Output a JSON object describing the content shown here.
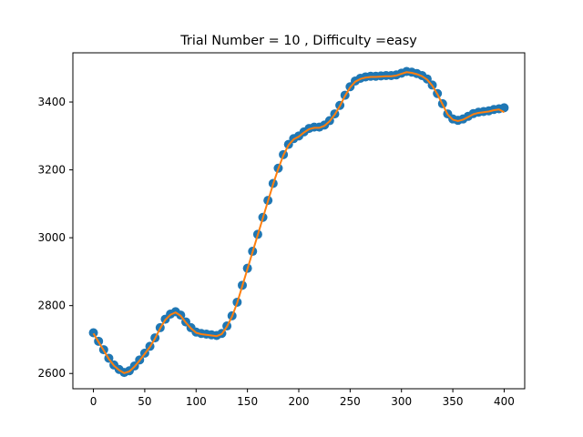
{
  "chart_data": {
    "type": "scatter",
    "title": "Trial Number = 10  , Difficulty =easy",
    "xlabel": "",
    "ylabel": "",
    "xlim": [
      -20,
      420
    ],
    "ylim": [
      2555,
      3545
    ],
    "xticks": [
      0,
      50,
      100,
      150,
      200,
      250,
      300,
      350,
      400
    ],
    "yticks": [
      2600,
      2800,
      3000,
      3200,
      3400
    ],
    "grid": false,
    "legend": "none",
    "series": [
      {
        "style": "markers",
        "color": "#1f77b4",
        "x": [
          0,
          5,
          10,
          15,
          20,
          25,
          30,
          35,
          40,
          45,
          50,
          55,
          60,
          65,
          70,
          75,
          80,
          85,
          90,
          95,
          100,
          105,
          110,
          115,
          120,
          125,
          130,
          135,
          140,
          145,
          150,
          155,
          160,
          165,
          170,
          175,
          180,
          185,
          190,
          195,
          200,
          205,
          210,
          215,
          220,
          225,
          230,
          235,
          240,
          245,
          250,
          255,
          260,
          265,
          270,
          275,
          280,
          285,
          290,
          295,
          300,
          305,
          310,
          315,
          320,
          325,
          330,
          335,
          340,
          345,
          350,
          355,
          360,
          365,
          370,
          375,
          380,
          385,
          390,
          395,
          400
        ],
        "y": [
          2720,
          2695,
          2670,
          2645,
          2625,
          2612,
          2603,
          2608,
          2622,
          2640,
          2660,
          2680,
          2705,
          2735,
          2760,
          2775,
          2782,
          2772,
          2752,
          2735,
          2722,
          2718,
          2716,
          2714,
          2712,
          2718,
          2740,
          2770,
          2810,
          2860,
          2910,
          2960,
          3010,
          3060,
          3110,
          3160,
          3205,
          3245,
          3275,
          3292,
          3300,
          3312,
          3322,
          3326,
          3326,
          3332,
          3345,
          3365,
          3390,
          3420,
          3445,
          3462,
          3470,
          3474,
          3476,
          3476,
          3477,
          3478,
          3478,
          3480,
          3485,
          3490,
          3488,
          3484,
          3478,
          3468,
          3450,
          3425,
          3395,
          3365,
          3350,
          3346,
          3350,
          3358,
          3366,
          3370,
          3372,
          3374,
          3378,
          3380,
          3383
        ]
      },
      {
        "style": "line",
        "color": "#ff7f0e",
        "x": [
          0,
          5,
          10,
          15,
          20,
          25,
          30,
          35,
          40,
          45,
          50,
          55,
          60,
          65,
          70,
          75,
          80,
          85,
          90,
          95,
          100,
          105,
          110,
          115,
          120,
          125,
          130,
          135,
          140,
          145,
          150,
          155,
          160,
          165,
          170,
          175,
          180,
          185,
          190,
          195,
          200,
          205,
          210,
          215,
          220,
          225,
          230,
          235,
          240,
          245,
          250,
          255,
          260,
          265,
          270,
          275,
          280,
          285,
          290,
          295,
          300,
          305,
          310,
          315,
          320,
          325,
          330,
          335,
          340,
          345,
          350,
          355,
          360,
          365,
          370,
          375,
          380,
          385,
          390,
          395,
          400
        ],
        "y": [
          2718,
          2693,
          2668,
          2643,
          2623,
          2610,
          2601,
          2606,
          2620,
          2638,
          2658,
          2678,
          2703,
          2733,
          2758,
          2773,
          2780,
          2770,
          2750,
          2733,
          2720,
          2716,
          2714,
          2712,
          2710,
          2716,
          2738,
          2768,
          2808,
          2858,
          2908,
          2958,
          3008,
          3058,
          3108,
          3158,
          3203,
          3243,
          3273,
          3290,
          3298,
          3310,
          3320,
          3324,
          3324,
          3330,
          3343,
          3363,
          3388,
          3418,
          3443,
          3460,
          3468,
          3472,
          3474,
          3474,
          3475,
          3476,
          3476,
          3478,
          3483,
          3488,
          3486,
          3482,
          3476,
          3466,
          3448,
          3423,
          3393,
          3363,
          3348,
          3344,
          3348,
          3356,
          3364,
          3368,
          3370,
          3372,
          3376,
          3378,
          3370
        ]
      }
    ]
  }
}
